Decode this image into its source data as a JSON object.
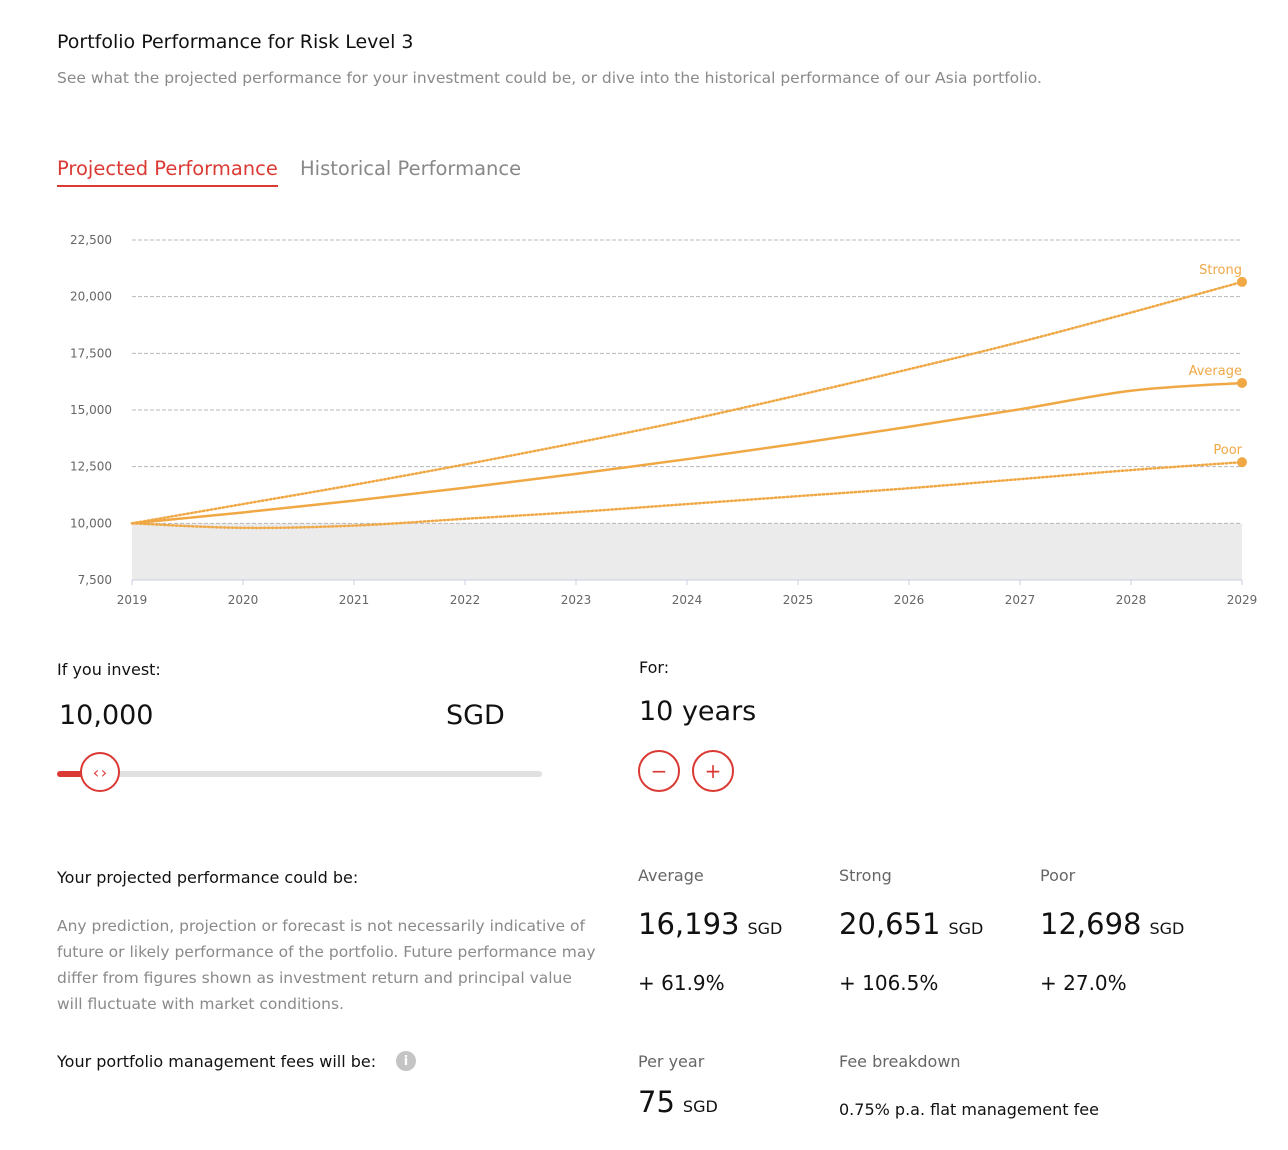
{
  "header": {
    "title": "Portfolio Performance for Risk Level 3",
    "subtitle": "See what the projected performance for your investment could be, or dive into the historical performance of our Asia portfolio."
  },
  "tabs": [
    {
      "label": "Projected Performance",
      "active": true
    },
    {
      "label": "Historical Performance",
      "active": false
    }
  ],
  "chart_data": {
    "type": "line",
    "x": [
      2019,
      2020,
      2021,
      2022,
      2023,
      2024,
      2025,
      2026,
      2027,
      2028,
      2029
    ],
    "xticks": [
      "2019",
      "2020",
      "2021",
      "2022",
      "2023",
      "2024",
      "2025",
      "2026",
      "2027",
      "2028",
      "2029"
    ],
    "yticks": [
      "7,500",
      "10,000",
      "12,500",
      "15,000",
      "17,500",
      "20,000",
      "22,500"
    ],
    "ylim": [
      7500,
      22500
    ],
    "grid": true,
    "shaded_below": 10000,
    "series": [
      {
        "name": "Strong",
        "style": "dotted",
        "values": [
          10000,
          10850,
          11700,
          12600,
          13550,
          14550,
          15650,
          16800,
          18000,
          19300,
          20651
        ]
      },
      {
        "name": "Average",
        "style": "solid",
        "values": [
          10000,
          10480,
          11000,
          11570,
          12180,
          12830,
          13520,
          14260,
          15030,
          15850,
          16193
        ]
      },
      {
        "name": "Poor",
        "style": "dotted",
        "values": [
          10000,
          9800,
          9900,
          10200,
          10500,
          10850,
          11200,
          11550,
          11950,
          12350,
          12698
        ]
      }
    ],
    "color": "#f0a845"
  },
  "invest": {
    "label": "If you invest:",
    "amount": "10,000",
    "currency": "SGD",
    "slider_fraction": 0.06
  },
  "duration": {
    "label": "For:",
    "value": "10 years",
    "minus": "−",
    "plus": "+"
  },
  "projection": {
    "heading": "Your projected performance could be:",
    "disclaimer": "Any prediction, projection or forecast is not necessarily indicative of future or likely performance of the portfolio. Future performance may differ from figures shown as investment return and principal value will fluctuate with market conditions.",
    "scenarios": [
      {
        "label": "Average",
        "value": "16,193",
        "currency": "SGD",
        "change": "+ 61.9%"
      },
      {
        "label": "Strong",
        "value": "20,651",
        "currency": "SGD",
        "change": "+ 106.5%"
      },
      {
        "label": "Poor",
        "value": "12,698",
        "currency": "SGD",
        "change": "+ 27.0%"
      }
    ]
  },
  "fees": {
    "heading": "Your portfolio management fees will be:",
    "info_icon": "info-icon",
    "per_year_label": "Per year",
    "per_year_value": "75",
    "per_year_currency": "SGD",
    "breakdown_label": "Fee breakdown",
    "breakdown_text": "0.75% p.a. flat management fee"
  },
  "colors": {
    "accent": "#db3a34",
    "line": "#f0a845",
    "muted": "#8a8a8a"
  }
}
